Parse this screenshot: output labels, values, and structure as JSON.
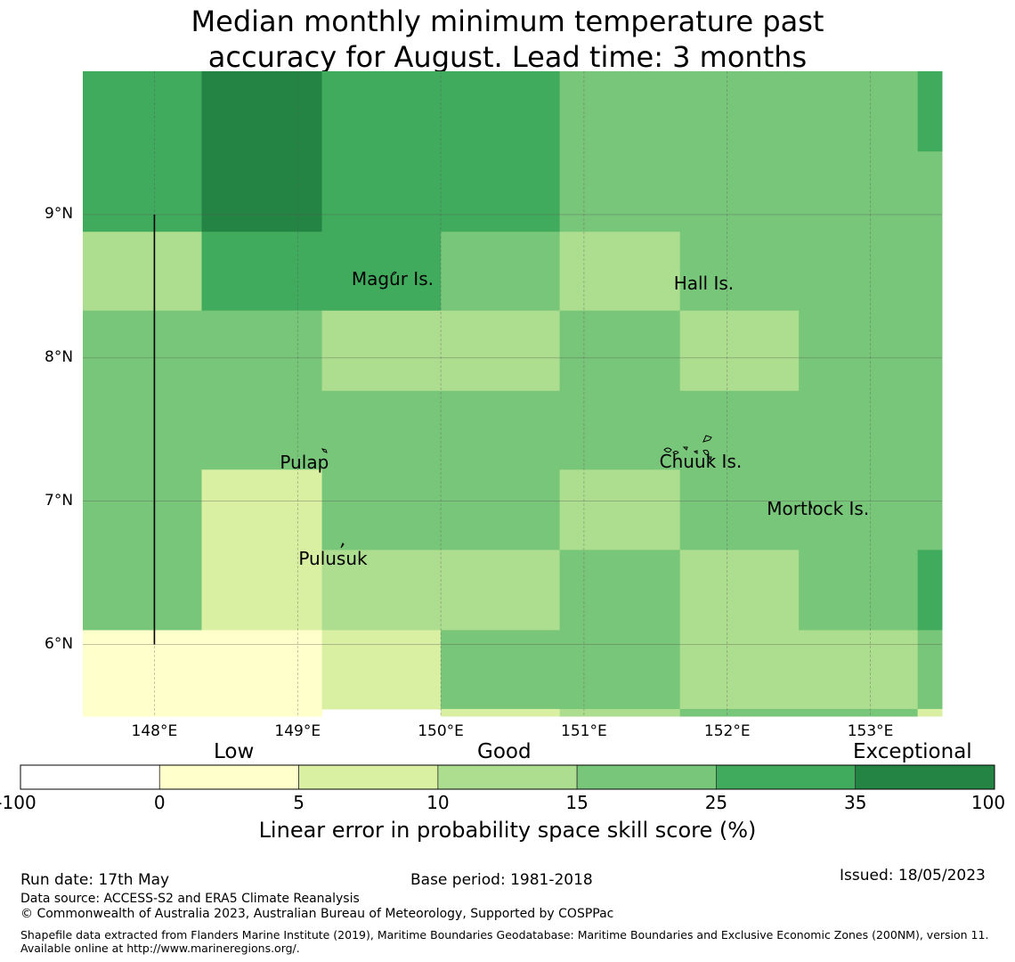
{
  "title_line1": "Median monthly minimum temperature past",
  "title_line2": "accuracy for August. Lead time: 3 months",
  "map": {
    "lon_range": [
      147.5,
      153.5
    ],
    "lat_range": [
      5.5,
      10.0
    ],
    "lat_ticks": [
      {
        "value": 9,
        "label": "9°N"
      },
      {
        "value": 8,
        "label": "8°N"
      },
      {
        "value": 7,
        "label": "7°N"
      },
      {
        "value": 6,
        "label": "6°N"
      }
    ],
    "lon_ticks": [
      {
        "value": 148,
        "label": "148°E"
      },
      {
        "value": 149,
        "label": "149°E"
      },
      {
        "value": 150,
        "label": "150°E"
      },
      {
        "value": 151,
        "label": "151°E"
      },
      {
        "value": 152,
        "label": "152°E"
      },
      {
        "value": 153,
        "label": "153°E"
      }
    ],
    "boundary_line": {
      "lon": 148.0,
      "lat_from": 6.0,
      "lat_to": 9.0
    },
    "grid_cells": [
      {
        "lon": [
          147.5,
          148.33
        ],
        "lat": [
          8.88,
          10.0
        ],
        "skill": 30
      },
      {
        "lon": [
          148.33,
          149.17
        ],
        "lat": [
          8.88,
          10.0
        ],
        "skill": 50
      },
      {
        "lon": [
          149.17,
          150.83
        ],
        "lat": [
          8.88,
          10.0
        ],
        "skill": 30
      },
      {
        "lon": [
          150.83,
          153.33
        ],
        "lat": [
          8.88,
          10.0
        ],
        "skill": 20
      },
      {
        "lon": [
          153.33,
          153.5
        ],
        "lat": [
          9.44,
          10.0
        ],
        "skill": 30
      },
      {
        "lon": [
          153.33,
          153.5
        ],
        "lat": [
          8.88,
          9.44
        ],
        "skill": 20
      },
      {
        "lon": [
          147.5,
          148.33
        ],
        "lat": [
          8.33,
          8.88
        ],
        "skill": 12
      },
      {
        "lon": [
          148.33,
          150.0
        ],
        "lat": [
          8.33,
          8.88
        ],
        "skill": 30
      },
      {
        "lon": [
          150.0,
          150.83
        ],
        "lat": [
          8.33,
          8.88
        ],
        "skill": 20
      },
      {
        "lon": [
          150.83,
          151.67
        ],
        "lat": [
          8.33,
          8.88
        ],
        "skill": 12
      },
      {
        "lon": [
          151.67,
          153.5
        ],
        "lat": [
          8.33,
          8.88
        ],
        "skill": 20
      },
      {
        "lon": [
          147.5,
          149.17
        ],
        "lat": [
          7.77,
          8.33
        ],
        "skill": 20
      },
      {
        "lon": [
          149.17,
          150.83
        ],
        "lat": [
          7.77,
          8.33
        ],
        "skill": 12
      },
      {
        "lon": [
          150.83,
          151.67
        ],
        "lat": [
          7.77,
          8.33
        ],
        "skill": 20
      },
      {
        "lon": [
          151.67,
          152.5
        ],
        "lat": [
          7.77,
          8.33
        ],
        "skill": 12
      },
      {
        "lon": [
          152.5,
          153.5
        ],
        "lat": [
          7.77,
          8.33
        ],
        "skill": 20
      },
      {
        "lon": [
          147.5,
          153.5
        ],
        "lat": [
          7.22,
          7.77
        ],
        "skill": 20
      },
      {
        "lon": [
          147.5,
          148.33
        ],
        "lat": [
          6.66,
          7.22
        ],
        "skill": 20
      },
      {
        "lon": [
          148.33,
          149.17
        ],
        "lat": [
          6.66,
          7.22
        ],
        "skill": 7
      },
      {
        "lon": [
          149.17,
          150.83
        ],
        "lat": [
          6.66,
          7.22
        ],
        "skill": 20
      },
      {
        "lon": [
          150.83,
          151.67
        ],
        "lat": [
          6.66,
          7.22
        ],
        "skill": 12
      },
      {
        "lon": [
          151.67,
          153.5
        ],
        "lat": [
          6.66,
          7.22
        ],
        "skill": 20
      },
      {
        "lon": [
          147.5,
          148.33
        ],
        "lat": [
          6.1,
          6.66
        ],
        "skill": 20
      },
      {
        "lon": [
          148.33,
          149.17
        ],
        "lat": [
          6.1,
          6.66
        ],
        "skill": 7
      },
      {
        "lon": [
          149.17,
          150.83
        ],
        "lat": [
          6.1,
          6.66
        ],
        "skill": 12
      },
      {
        "lon": [
          150.83,
          151.67
        ],
        "lat": [
          6.1,
          6.66
        ],
        "skill": 20
      },
      {
        "lon": [
          151.67,
          152.5
        ],
        "lat": [
          6.1,
          6.66
        ],
        "skill": 12
      },
      {
        "lon": [
          152.5,
          153.33
        ],
        "lat": [
          6.1,
          6.66
        ],
        "skill": 20
      },
      {
        "lon": [
          153.33,
          153.5
        ],
        "lat": [
          6.1,
          6.66
        ],
        "skill": 30
      },
      {
        "lon": [
          147.5,
          149.17
        ],
        "lat": [
          5.5,
          6.1
        ],
        "skill": 2
      },
      {
        "lon": [
          149.17,
          150.0
        ],
        "lat": [
          5.55,
          6.1
        ],
        "skill": 7
      },
      {
        "lon": [
          150.0,
          151.67
        ],
        "lat": [
          5.55,
          6.1
        ],
        "skill": 20
      },
      {
        "lon": [
          151.67,
          153.33
        ],
        "lat": [
          5.55,
          6.1
        ],
        "skill": 12
      },
      {
        "lon": [
          153.33,
          153.5
        ],
        "lat": [
          5.55,
          6.1
        ],
        "skill": 20
      },
      {
        "lon": [
          150.0,
          150.83
        ],
        "lat": [
          5.5,
          5.55
        ],
        "skill": 7
      },
      {
        "lon": [
          150.83,
          151.67
        ],
        "lat": [
          5.5,
          5.55
        ],
        "skill": 12
      },
      {
        "lon": [
          151.67,
          153.33
        ],
        "lat": [
          5.5,
          5.55
        ],
        "skill": 20
      },
      {
        "lon": [
          153.33,
          153.5
        ],
        "lat": [
          5.5,
          5.55
        ],
        "skill": 7
      }
    ],
    "places": [
      {
        "name": "Magur Is.",
        "lon": 149.7,
        "lat": 8.55
      },
      {
        "name": "Hall Is.",
        "lon": 151.95,
        "lat": 8.52
      },
      {
        "name": "Pulap",
        "lon": 149.2,
        "lat": 7.27
      },
      {
        "name": "Chuuk Is.",
        "lon": 151.85,
        "lat": 7.28
      },
      {
        "name": "Mortlock Is.",
        "lon": 152.6,
        "lat": 6.95
      },
      {
        "name": "Pulusuk",
        "lon": 149.33,
        "lat": 6.6
      }
    ]
  },
  "colorbar": {
    "bins": [
      {
        "from": "-100",
        "to": "0",
        "color": "#ffffff"
      },
      {
        "from": "0",
        "to": "5",
        "color": "#ffffcc"
      },
      {
        "from": "5",
        "to": "10",
        "color": "#d9f0a3"
      },
      {
        "from": "10",
        "to": "15",
        "color": "#addd8e"
      },
      {
        "from": "15",
        "to": "25",
        "color": "#78c679"
      },
      {
        "from": "25",
        "to": "35",
        "color": "#41ab5d"
      },
      {
        "from": "35",
        "to": "100",
        "color": "#238443"
      }
    ],
    "tick_labels": [
      "-100",
      "0",
      "5",
      "10",
      "15",
      "25",
      "35",
      "100"
    ],
    "category_low": "Low",
    "category_good": "Good",
    "category_exceptional": "Exceptional",
    "title": "Linear error in probability space skill score (%)"
  },
  "footer": {
    "run_date": "Run date: 17th May",
    "base_period": "Base period: 1981-2018",
    "issued": "Issued: 18/05/2023",
    "data_source": "Data source: ACCESS-S2 and ERA5 Climate Reanalysis",
    "copyright": "© Commonwealth of Australia 2023, Australian Bureau of Meteorology, Supported by COSPPac",
    "shapefile": "Shapefile data extracted from Flanders Marine Institute (2019), Maritime Boundaries Geodatabase: Maritime Boundaries and Exclusive Economic Zones (200NM), version 11. Available online at http://www.marineregions.org/."
  }
}
